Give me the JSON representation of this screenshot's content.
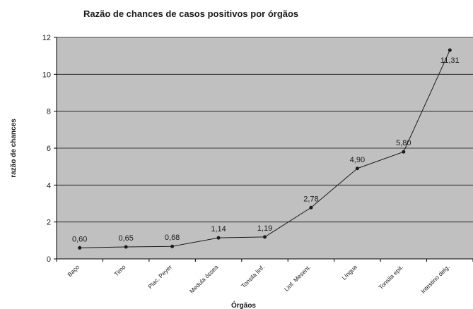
{
  "chart_data": {
    "type": "line",
    "title": "Razão de chances de casos positivos por órgãos",
    "xlabel": "Órgãos",
    "ylabel": "razão de chances",
    "categories": [
      "Baço",
      "Timo",
      "Plac. Peyer",
      "Medula óssea",
      "Tonsila linf.",
      "Linf. Mesent.",
      "Língua",
      "Tonsila epit.",
      "Intestino delg."
    ],
    "values": [
      0.6,
      0.65,
      0.68,
      1.14,
      1.19,
      2.78,
      4.9,
      5.8,
      11.31
    ],
    "data_labels": [
      "0,60",
      "0,65",
      "0,68",
      "1,14",
      "1,19",
      "2,78",
      "4,90",
      "5,80",
      "11,31"
    ],
    "ylim": [
      0,
      12
    ],
    "yticks": [
      0,
      2,
      4,
      6,
      8,
      10,
      12
    ],
    "grid": true,
    "legend": "none",
    "colors": {
      "plot_background": "#c0c0c0",
      "line": "#1a1a1a",
      "grid": "#111111"
    }
  }
}
